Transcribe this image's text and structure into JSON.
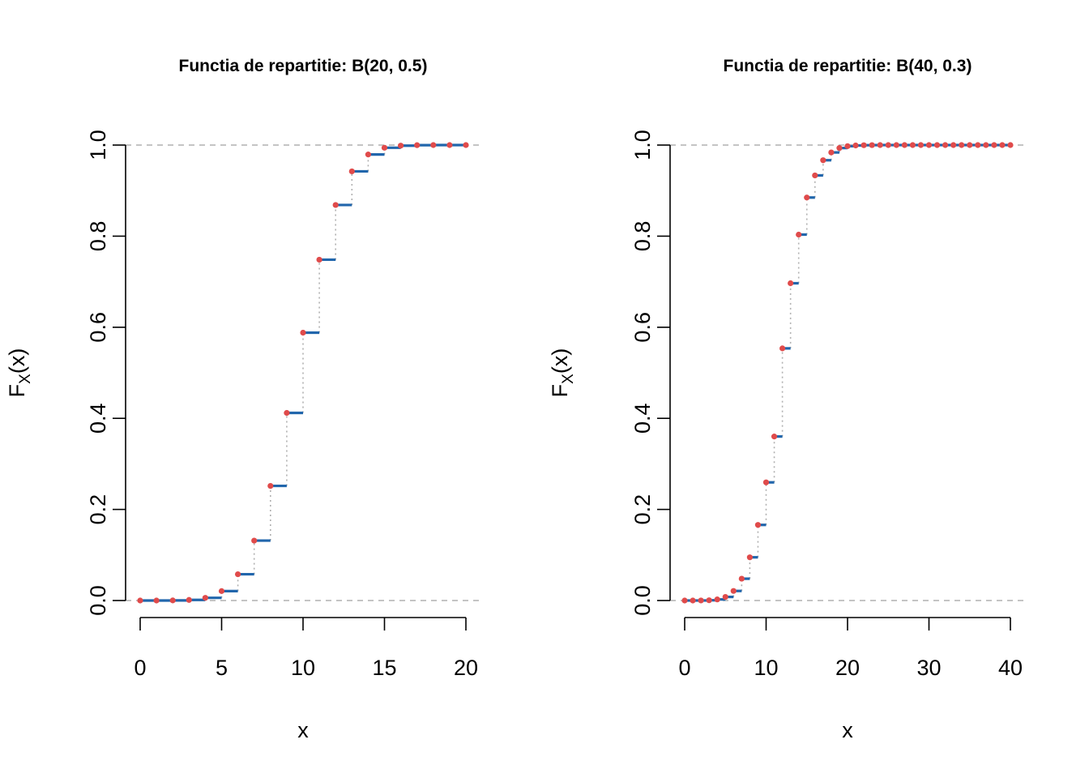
{
  "chart_data": [
    {
      "type": "step",
      "title": "Functia de repartitie: B(20, 0.5)",
      "xlabel": "x",
      "ylabel_main": "F",
      "ylabel_sub": "X",
      "ylabel_arg": "(x)",
      "xlim": [
        0,
        20
      ],
      "ylim": [
        0,
        1
      ],
      "x_ticks": [
        "0",
        "5",
        "10",
        "15",
        "20"
      ],
      "y_ticks": [
        "0.0",
        "0.2",
        "0.4",
        "0.6",
        "0.8",
        "1.0"
      ],
      "reference_lines": [
        0,
        1
      ],
      "x": [
        0,
        1,
        2,
        3,
        4,
        5,
        6,
        7,
        8,
        9,
        10,
        11,
        12,
        13,
        14,
        15,
        16,
        17,
        18,
        19,
        20
      ],
      "values": [
        1e-06,
        2e-05,
        0.0002,
        0.0013,
        0.0059,
        0.0207,
        0.0577,
        0.1316,
        0.2517,
        0.4119,
        0.5881,
        0.7483,
        0.8684,
        0.9423,
        0.9793,
        0.9941,
        0.9987,
        0.9998,
        1.0,
        1.0,
        1.0
      ],
      "colors": {
        "step": "#2166ac",
        "point": "#e04b4b",
        "riser": "#b0b0b0",
        "reference": "#b0b0b0"
      }
    },
    {
      "type": "step",
      "title": "Functia de repartitie: B(40, 0.3)",
      "xlabel": "x",
      "ylabel_main": "F",
      "ylabel_sub": "X",
      "ylabel_arg": "(x)",
      "xlim": [
        0,
        40
      ],
      "ylim": [
        0,
        1
      ],
      "x_ticks": [
        "0",
        "10",
        "20",
        "30",
        "40"
      ],
      "y_ticks": [
        "0.0",
        "0.2",
        "0.4",
        "0.6",
        "0.8",
        "1.0"
      ],
      "reference_lines": [
        0,
        1
      ],
      "x": [
        0,
        1,
        2,
        3,
        4,
        5,
        6,
        7,
        8,
        9,
        10,
        11,
        12,
        13,
        14,
        15,
        16,
        17,
        18,
        19,
        20,
        21,
        22,
        23,
        24,
        25,
        26,
        27,
        28,
        29,
        30,
        31,
        32,
        33,
        34,
        35,
        36,
        37,
        38,
        39,
        40
      ],
      "values": [
        6e-07,
        1.1e-05,
        0.0001,
        0.0006,
        0.0024,
        0.0079,
        0.021,
        0.0479,
        0.0949,
        0.166,
        0.2594,
        0.3601,
        0.5536,
        0.6966,
        0.8034,
        0.8848,
        0.9334,
        0.9667,
        0.9838,
        0.9935,
        0.9976,
        0.9991,
        0.9997,
        0.9999,
        1.0,
        1.0,
        1.0,
        1.0,
        1.0,
        1.0,
        1.0,
        1.0,
        1.0,
        1.0,
        1.0,
        1.0,
        1.0,
        1.0,
        1.0,
        1.0,
        1.0
      ],
      "colors": {
        "step": "#2166ac",
        "point": "#e04b4b",
        "riser": "#b0b0b0",
        "reference": "#b0b0b0"
      }
    }
  ]
}
